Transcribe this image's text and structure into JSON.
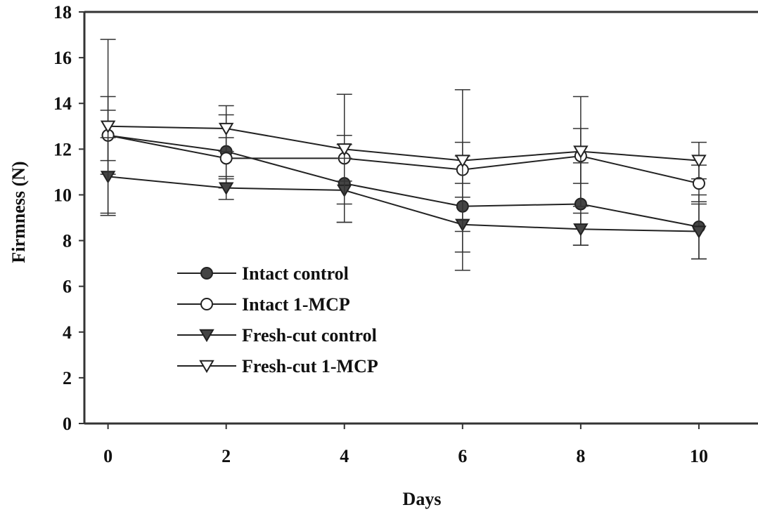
{
  "chart_data": {
    "type": "line",
    "xlabel": "Days",
    "ylabel": "Firmness (N)",
    "xlim": [
      -0.4,
      11.0
    ],
    "ylim": [
      0,
      18
    ],
    "x_ticks": [
      0,
      2,
      4,
      6,
      8,
      10
    ],
    "y_ticks": [
      0,
      2,
      4,
      6,
      8,
      10,
      12,
      14,
      16,
      18
    ],
    "x": [
      0,
      2,
      4,
      6,
      8,
      10
    ],
    "legend_position": "lower-left",
    "grid": false,
    "series": [
      {
        "name": "Intact control",
        "marker": "circle-filled",
        "values": [
          12.6,
          11.9,
          10.5,
          9.5,
          9.6,
          8.6
        ],
        "error": [
          1.7,
          1.6,
          1.7,
          2.8,
          1.8,
          1.4
        ]
      },
      {
        "name": "Intact 1-MCP",
        "marker": "circle-open",
        "values": [
          12.6,
          11.6,
          11.6,
          11.1,
          11.7,
          10.5
        ],
        "error": [
          1.1,
          0.9,
          1.0,
          0.6,
          1.2,
          0.8
        ]
      },
      {
        "name": "Fresh-cut control",
        "marker": "triangle-down-filled",
        "values": [
          10.8,
          10.3,
          10.2,
          8.7,
          8.5,
          8.4
        ],
        "error": [
          1.7,
          0.5,
          1.4,
          1.2,
          0.7,
          1.2
        ]
      },
      {
        "name": "Fresh-cut 1-MCP",
        "marker": "triangle-down-open",
        "values": [
          13.0,
          12.9,
          12.0,
          11.5,
          11.9,
          11.5
        ],
        "error": [
          3.8,
          1.0,
          2.4,
          3.1,
          2.4,
          0.8
        ]
      }
    ]
  }
}
